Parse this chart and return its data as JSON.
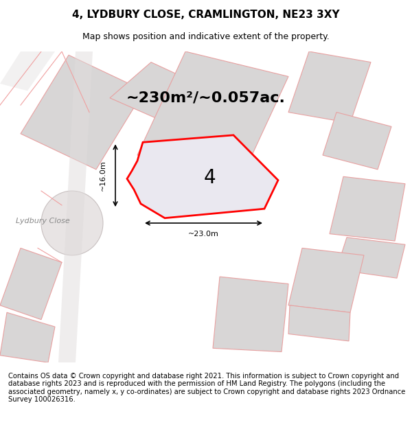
{
  "title": "4, LYDBURY CLOSE, CRAMLINGTON, NE23 3XY",
  "subtitle": "Map shows position and indicative extent of the property.",
  "area_label": "~230m²/~0.057ac.",
  "plot_number": "4",
  "street_label": "Lydbury Close",
  "dim_width": "~23.0m",
  "dim_height": "~16.0m",
  "footer": "Contains OS data © Crown copyright and database right 2021. This information is subject to Crown copyright and database rights 2023 and is reproduced with the permission of HM Land Registry. The polygons (including the associated geometry, namely x, y co-ordinates) are subject to Crown copyright and database rights 2023 Ordnance Survey 100026316.",
  "bg_color": "#f0eeee",
  "map_bg": "#f5f3f3",
  "plot_fill": "#e8e8ee",
  "plot_border": "#ff0000",
  "other_fill": "#d8d6d6",
  "other_border": "#f0a0a0",
  "road_color": "#c8c0c0",
  "title_fontsize": 11,
  "subtitle_fontsize": 9,
  "footer_fontsize": 7.2
}
